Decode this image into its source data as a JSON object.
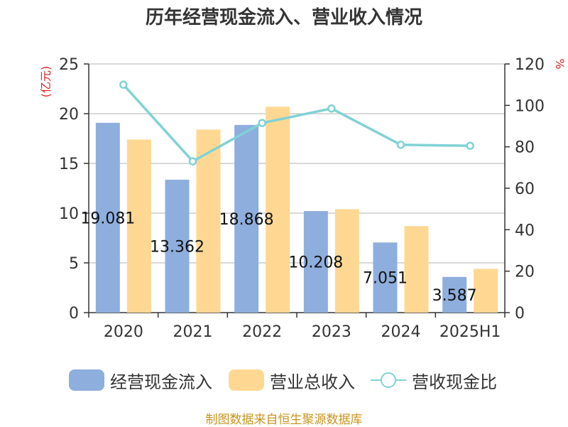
{
  "chart_data": {
    "type": "bar",
    "title": "历年经营现金流入、营业收入情况",
    "categories": [
      "2020",
      "2021",
      "2022",
      "2023",
      "2024",
      "2025H1"
    ],
    "left_axis": {
      "label": "(亿元)",
      "ylim": [
        0,
        25
      ],
      "ticks": [
        "0",
        "5",
        "10",
        "15",
        "20",
        "25"
      ]
    },
    "right_axis": {
      "label": "%",
      "ylim": [
        0,
        120
      ],
      "ticks": [
        "0",
        "20",
        "40",
        "60",
        "80",
        "100",
        "120"
      ]
    },
    "series": [
      {
        "name": "经营现金流入",
        "type": "bar",
        "axis": "left",
        "color": "#8eaedd",
        "values": [
          19.081,
          13.362,
          18.868,
          10.208,
          7.051,
          3.587
        ],
        "data_labels": [
          "19.081",
          "13.362",
          "18.868",
          "10.208",
          "7.051",
          "3.587"
        ]
      },
      {
        "name": "营业总收入",
        "type": "bar",
        "axis": "left",
        "color": "#fed893",
        "values": [
          17.4,
          18.4,
          20.7,
          10.4,
          8.7,
          4.4
        ]
      },
      {
        "name": "营收现金比",
        "type": "line",
        "axis": "right",
        "color": "#80d2d6",
        "values": [
          110,
          73,
          91.5,
          98.5,
          81,
          80.5
        ]
      }
    ],
    "grid": true,
    "legend_position": "bottom"
  },
  "footer": {
    "source": "制图数据来自恒生聚源数据库"
  }
}
